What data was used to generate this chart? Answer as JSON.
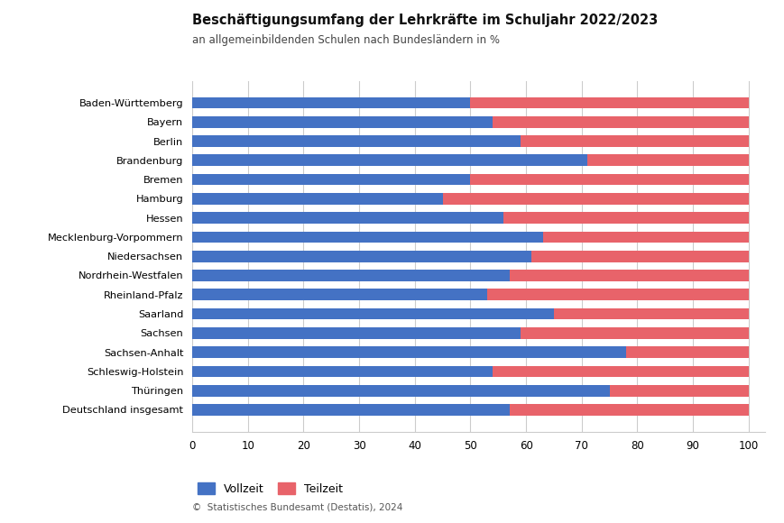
{
  "title": "Beschäftigungsumfang der Lehrkräfte im Schuljahr 2022/2023",
  "subtitle": "an allgemeinbildenden Schulen nach Bundesländern in %",
  "categories": [
    "Baden-Württemberg",
    "Bayern",
    "Berlin",
    "Brandenburg",
    "Bremen",
    "Hamburg",
    "Hessen",
    "Mecklenburg-Vorpommern",
    "Niedersachsen",
    "Nordrhein-Westfalen",
    "Rheinland-Pfalz",
    "Saarland",
    "Sachsen",
    "Sachsen-Anhalt",
    "Schleswig-Holstein",
    "Thüringen",
    "Deutschland insgesamt"
  ],
  "vollzeit": [
    50,
    54,
    59,
    71,
    50,
    45,
    56,
    63,
    61,
    57,
    53,
    65,
    59,
    78,
    54,
    75,
    57
  ],
  "teilzeit": [
    50,
    46,
    41,
    29,
    50,
    55,
    44,
    37,
    39,
    43,
    47,
    35,
    41,
    22,
    46,
    25,
    43
  ],
  "color_vollzeit": "#4472C4",
  "color_teilzeit": "#E8636A",
  "xlim": [
    0,
    103
  ],
  "xticks": [
    0,
    10,
    20,
    30,
    40,
    50,
    60,
    70,
    80,
    90,
    100
  ],
  "legend_vollzeit": "Vollzeit",
  "legend_teilzeit": "Teilzeit",
  "footer": "©  Statistisches Bundesamt (Destatis), 2024",
  "background_color": "#FFFFFF",
  "grid_color": "#CCCCCC",
  "bar_height": 0.6
}
